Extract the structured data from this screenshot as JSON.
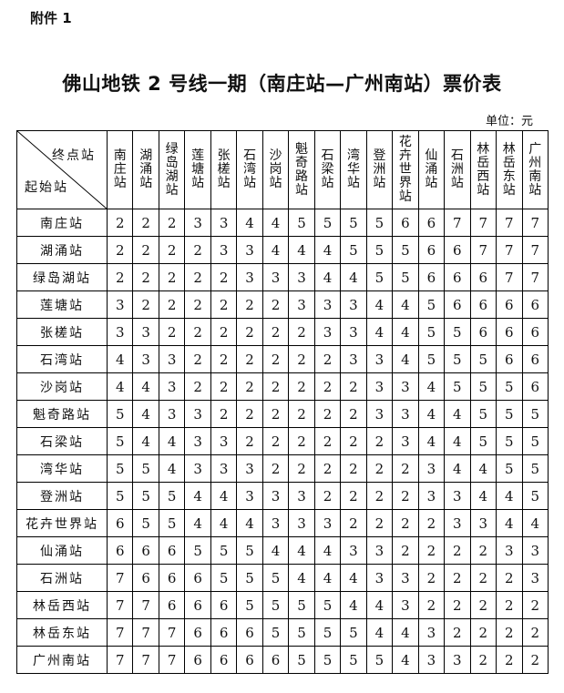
{
  "attachment_label": "附件 1",
  "title": "佛山地铁 2 号线一期（南庄站—广州南站）票价表",
  "unit_label": "单位：元",
  "corner": {
    "end_label": "终点站",
    "start_label": "起始站"
  },
  "stations": [
    "南庄站",
    "湖涌站",
    "绿岛湖站",
    "莲塘站",
    "张槎站",
    "石湾站",
    "沙岗站",
    "魁奇路站",
    "石梁站",
    "湾华站",
    "登洲站",
    "花卉世界站",
    "仙涌站",
    "石洲站",
    "林岳西站",
    "林岳东站",
    "广州南站"
  ],
  "fares": [
    [
      2,
      2,
      2,
      3,
      3,
      4,
      4,
      5,
      5,
      5,
      5,
      6,
      6,
      7,
      7,
      7,
      7
    ],
    [
      2,
      2,
      2,
      2,
      3,
      3,
      4,
      4,
      4,
      5,
      5,
      5,
      6,
      6,
      7,
      7,
      7
    ],
    [
      2,
      2,
      2,
      2,
      2,
      3,
      3,
      3,
      4,
      4,
      5,
      5,
      6,
      6,
      6,
      7,
      7
    ],
    [
      3,
      2,
      2,
      2,
      2,
      2,
      2,
      3,
      3,
      3,
      4,
      4,
      5,
      6,
      6,
      6,
      6
    ],
    [
      3,
      3,
      2,
      2,
      2,
      2,
      2,
      2,
      3,
      3,
      4,
      4,
      5,
      5,
      6,
      6,
      6
    ],
    [
      4,
      3,
      3,
      2,
      2,
      2,
      2,
      2,
      2,
      3,
      3,
      4,
      5,
      5,
      5,
      6,
      6
    ],
    [
      4,
      4,
      3,
      2,
      2,
      2,
      2,
      2,
      2,
      2,
      3,
      3,
      4,
      5,
      5,
      5,
      6
    ],
    [
      5,
      4,
      3,
      3,
      2,
      2,
      2,
      2,
      2,
      2,
      3,
      3,
      4,
      4,
      5,
      5,
      5
    ],
    [
      5,
      4,
      4,
      3,
      3,
      2,
      2,
      2,
      2,
      2,
      2,
      3,
      4,
      4,
      5,
      5,
      5
    ],
    [
      5,
      5,
      4,
      3,
      3,
      3,
      2,
      2,
      2,
      2,
      2,
      2,
      3,
      4,
      4,
      5,
      5
    ],
    [
      5,
      5,
      5,
      4,
      4,
      3,
      3,
      3,
      2,
      2,
      2,
      2,
      3,
      3,
      4,
      4,
      5
    ],
    [
      6,
      5,
      5,
      4,
      4,
      4,
      3,
      3,
      3,
      2,
      2,
      2,
      2,
      3,
      3,
      4,
      4
    ],
    [
      6,
      6,
      6,
      5,
      5,
      5,
      4,
      4,
      4,
      3,
      3,
      2,
      2,
      2,
      2,
      3,
      3
    ],
    [
      7,
      6,
      6,
      6,
      5,
      5,
      5,
      4,
      4,
      4,
      3,
      3,
      2,
      2,
      2,
      2,
      3
    ],
    [
      7,
      7,
      6,
      6,
      6,
      5,
      5,
      5,
      5,
      4,
      4,
      3,
      2,
      2,
      2,
      2,
      2
    ],
    [
      7,
      7,
      7,
      6,
      6,
      6,
      5,
      5,
      5,
      5,
      4,
      4,
      3,
      2,
      2,
      2,
      2
    ],
    [
      7,
      7,
      7,
      6,
      6,
      6,
      6,
      5,
      5,
      5,
      5,
      4,
      3,
      3,
      2,
      2,
      2
    ]
  ]
}
